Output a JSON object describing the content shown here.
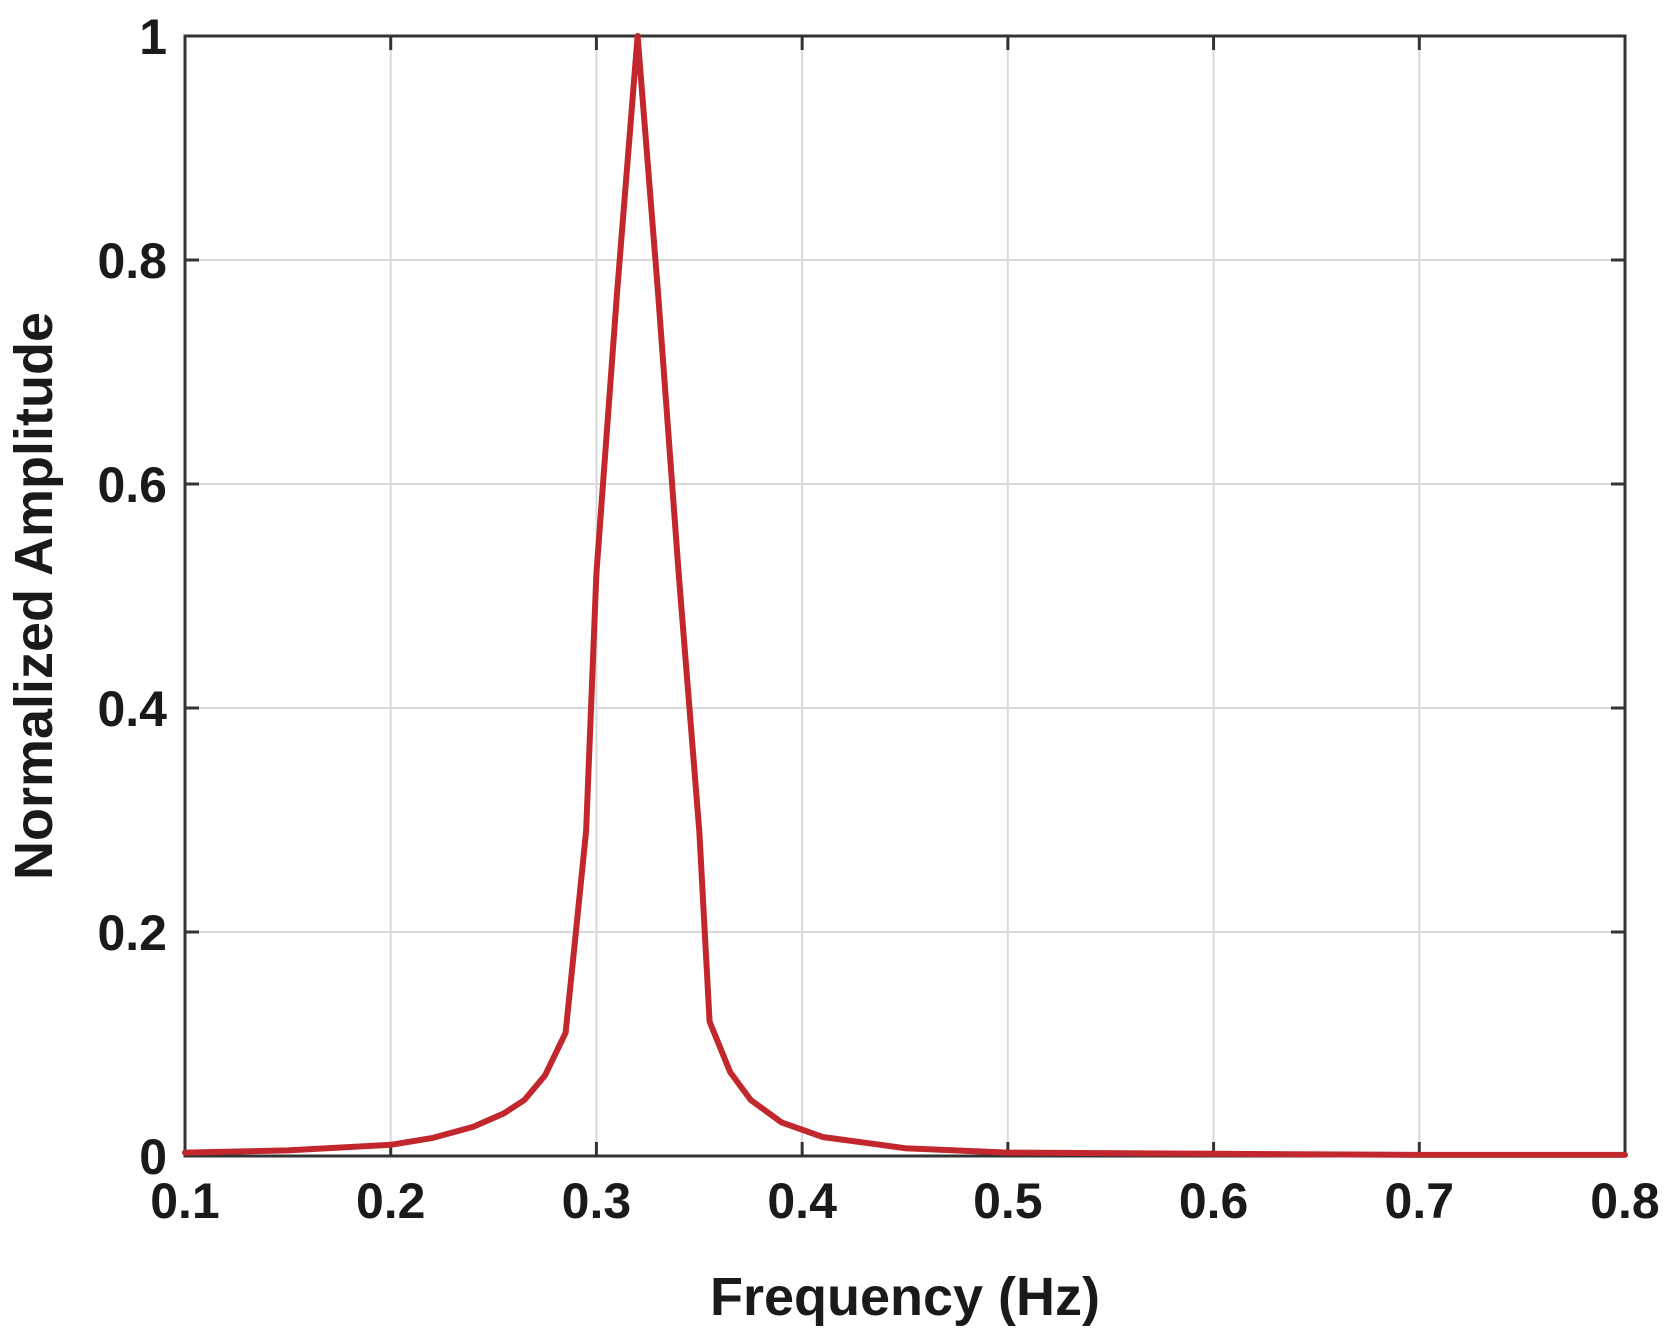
{
  "chart_data": {
    "type": "line",
    "title": "",
    "xlabel": "Frequency (Hz)",
    "ylabel": "Normalized Amplitude",
    "xlim": [
      0.1,
      0.8
    ],
    "ylim": [
      0,
      1
    ],
    "xticks": [
      "0.1",
      "0.2",
      "0.3",
      "0.4",
      "0.5",
      "0.6",
      "0.7",
      "0.8"
    ],
    "yticks": [
      "0",
      "0.2",
      "0.4",
      "0.6",
      "0.8",
      "1"
    ],
    "grid": true,
    "legend": "none",
    "series": [
      {
        "color": "#c1272d",
        "x": [
          0.1,
          0.15,
          0.2,
          0.22,
          0.24,
          0.255,
          0.265,
          0.275,
          0.285,
          0.29,
          0.295,
          0.3,
          0.31,
          0.32,
          0.33,
          0.34,
          0.35,
          0.355,
          0.365,
          0.375,
          0.39,
          0.41,
          0.45,
          0.5,
          0.6,
          0.7,
          0.8
        ],
        "y": [
          0.003,
          0.005,
          0.01,
          0.016,
          0.026,
          0.038,
          0.05,
          0.072,
          0.11,
          0.2,
          0.29,
          0.52,
          0.77,
          1.0,
          0.77,
          0.52,
          0.29,
          0.12,
          0.075,
          0.05,
          0.03,
          0.017,
          0.007,
          0.003,
          0.002,
          0.001,
          0.001
        ]
      }
    ]
  }
}
